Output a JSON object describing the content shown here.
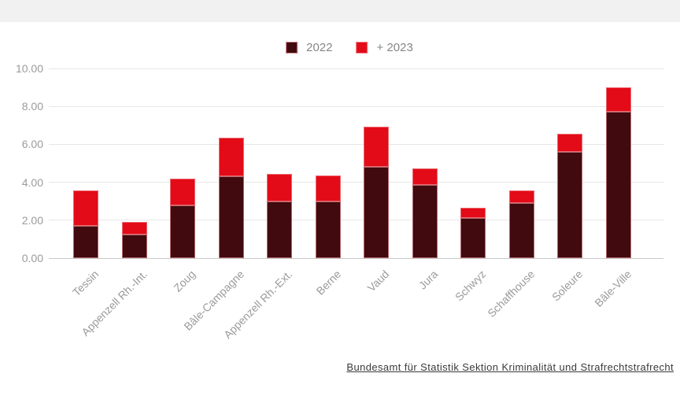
{
  "legend": {
    "items": [
      {
        "label": "2022",
        "color": "#400a0e"
      },
      {
        "label": "+ 2023",
        "color": "#e30b17"
      }
    ]
  },
  "footer": {
    "source_link": "Bundesamt für Statistik Sektion Kriminalität und Strafrechtstrafrecht"
  },
  "chart_data": {
    "type": "bar",
    "stacked": true,
    "title": "",
    "xlabel": "",
    "ylabel": "",
    "categories": [
      "Tessin",
      "Appenzell Rh.-Int.",
      "Zoug",
      "Bâle-Campagne",
      "Appenzell Rh.-Ext.",
      "Berne",
      "Vaud",
      "Jura",
      "Schwyz",
      "Schaffhouse",
      "Soleure",
      "Bâle-Ville"
    ],
    "series": [
      {
        "name": "2022",
        "color": "#400a0e",
        "values": [
          1.7,
          1.25,
          2.8,
          4.3,
          3.0,
          3.0,
          4.8,
          3.85,
          2.1,
          2.9,
          5.6,
          7.7
        ]
      },
      {
        "name": "+ 2023",
        "color": "#e30b17",
        "values": [
          1.85,
          0.65,
          1.4,
          2.05,
          1.45,
          1.35,
          2.15,
          0.9,
          0.55,
          0.65,
          0.95,
          1.3
        ]
      }
    ],
    "totals": [
      3.55,
      1.9,
      4.2,
      6.35,
      4.45,
      4.35,
      6.95,
      4.75,
      2.65,
      3.55,
      6.55,
      9.0
    ],
    "ylim": [
      0,
      10
    ],
    "yticks": [
      0,
      2,
      4,
      6,
      8,
      10
    ],
    "ytick_labels": [
      "0.00",
      "2.00",
      "4.00",
      "6.00",
      "8.00",
      "10.00"
    ],
    "grid": true,
    "legend_position": "top-center",
    "styles": {
      "grid_color": "#e7e7e7",
      "baseline_color": "#c9c9c9",
      "tick_label_color": "#9b9b9b",
      "segment_stroke": "#f09ba0",
      "top_band_color": "#f1f1f1"
    }
  }
}
